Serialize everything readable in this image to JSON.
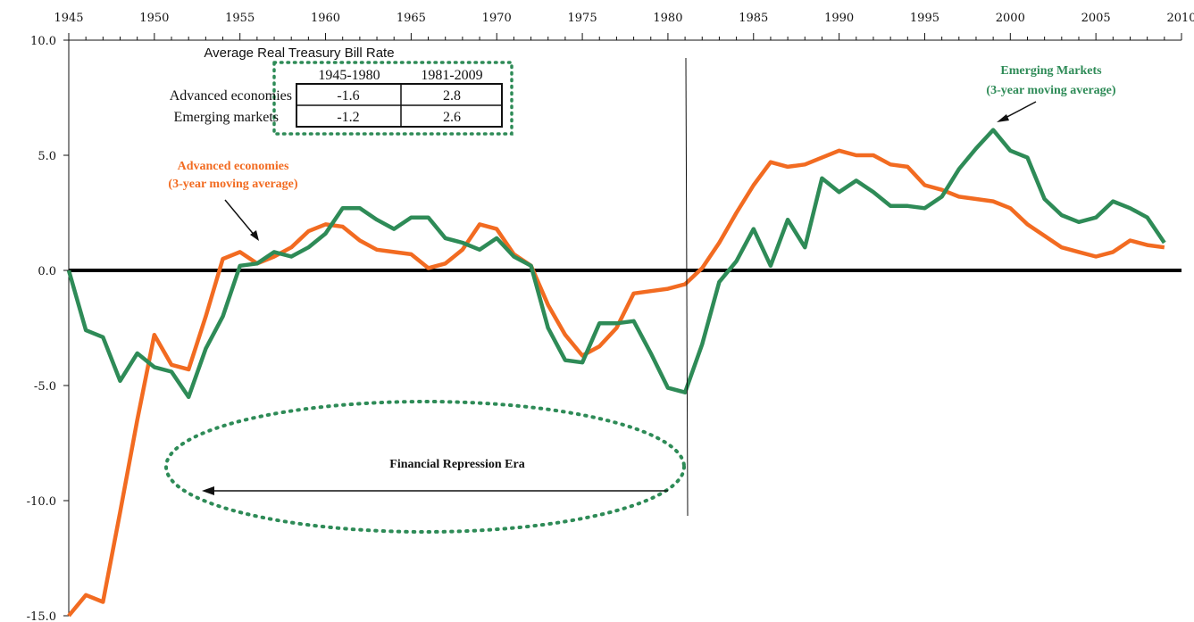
{
  "chart_data": {
    "type": "line",
    "title": "",
    "xlabel": "",
    "ylabel": "",
    "xlim": [
      1945,
      2010
    ],
    "ylim": [
      -15,
      10
    ],
    "x_ticks": [
      "1945",
      "1950",
      "1955",
      "1960",
      "1965",
      "1970",
      "1975",
      "1980",
      "1985",
      "1990",
      "1995",
      "2000",
      "2005",
      "2010"
    ],
    "y_ticks": [
      "10.0",
      "5.0",
      "0.0",
      "-5.0",
      "-10.0",
      "-15.0"
    ],
    "x": [
      1945,
      1946,
      1947,
      1948,
      1949,
      1950,
      1951,
      1952,
      1953,
      1954,
      1955,
      1956,
      1957,
      1958,
      1959,
      1960,
      1961,
      1962,
      1963,
      1964,
      1965,
      1966,
      1967,
      1968,
      1969,
      1970,
      1971,
      1972,
      1973,
      1974,
      1975,
      1976,
      1977,
      1978,
      1979,
      1980,
      1981,
      1982,
      1983,
      1984,
      1985,
      1986,
      1987,
      1988,
      1989,
      1990,
      1991,
      1992,
      1993,
      1994,
      1995,
      1996,
      1997,
      1998,
      1999,
      2000,
      2001,
      2002,
      2003,
      2004,
      2005,
      2006,
      2007,
      2008,
      2009
    ],
    "series": [
      {
        "name": "Advanced economies",
        "color": "#f26b21",
        "values": [
          -15.0,
          -14.1,
          -14.4,
          -10.5,
          -6.5,
          -2.8,
          -4.1,
          -4.3,
          -2.0,
          0.5,
          0.8,
          0.3,
          0.6,
          1.0,
          1.7,
          2.0,
          1.9,
          1.3,
          0.9,
          0.8,
          0.7,
          0.1,
          0.3,
          0.9,
          2.0,
          1.8,
          0.7,
          0.2,
          -1.5,
          -2.8,
          -3.7,
          -3.3,
          -2.5,
          -1.0,
          -0.9,
          -0.8,
          -0.6,
          0.1,
          1.2,
          2.5,
          3.7,
          4.7,
          4.5,
          4.6,
          4.9,
          5.2,
          5.0,
          5.0,
          4.6,
          4.5,
          3.7,
          3.5,
          3.2,
          3.1,
          3.0,
          2.7,
          2.0,
          1.5,
          1.0,
          0.8,
          0.6,
          0.8,
          1.3,
          1.1,
          1.0
        ]
      },
      {
        "name": "Emerging Markets",
        "color": "#2e8b57",
        "values": [
          0.0,
          -2.6,
          -2.9,
          -4.8,
          -3.6,
          -4.2,
          -4.4,
          -5.5,
          -3.4,
          -2.0,
          0.2,
          0.3,
          0.8,
          0.6,
          1.0,
          1.6,
          2.7,
          2.7,
          2.2,
          1.8,
          2.3,
          2.3,
          1.4,
          1.2,
          0.9,
          1.4,
          0.6,
          0.2,
          -2.5,
          -3.9,
          -4.0,
          -2.3,
          -2.3,
          -2.2,
          -3.6,
          -5.1,
          -5.3,
          -3.2,
          -0.5,
          0.4,
          1.8,
          0.2,
          2.2,
          1.0,
          4.0,
          3.4,
          3.9,
          3.4,
          2.8,
          2.8,
          2.7,
          3.2,
          4.4,
          5.3,
          6.1,
          5.2,
          4.9,
          3.1,
          2.4,
          2.1,
          2.3,
          3.0,
          2.7,
          2.3,
          1.2
        ]
      }
    ],
    "annotations": {
      "advanced_label": "Advanced economies",
      "advanced_sub": "(3-year moving average)",
      "emerging_label": "Emerging Markets",
      "emerging_sub": "(3-year moving average)",
      "era_label": "Financial Repression Era"
    },
    "table": {
      "title": "Average Real Treasury Bill Rate",
      "columns": [
        "1945-1980",
        "1981-2009"
      ],
      "rows": [
        {
          "label": "Advanced economies",
          "values": [
            "-1.6",
            "2.8"
          ]
        },
        {
          "label": "Emerging markets",
          "values": [
            "-1.2",
            "2.6"
          ]
        }
      ]
    }
  }
}
